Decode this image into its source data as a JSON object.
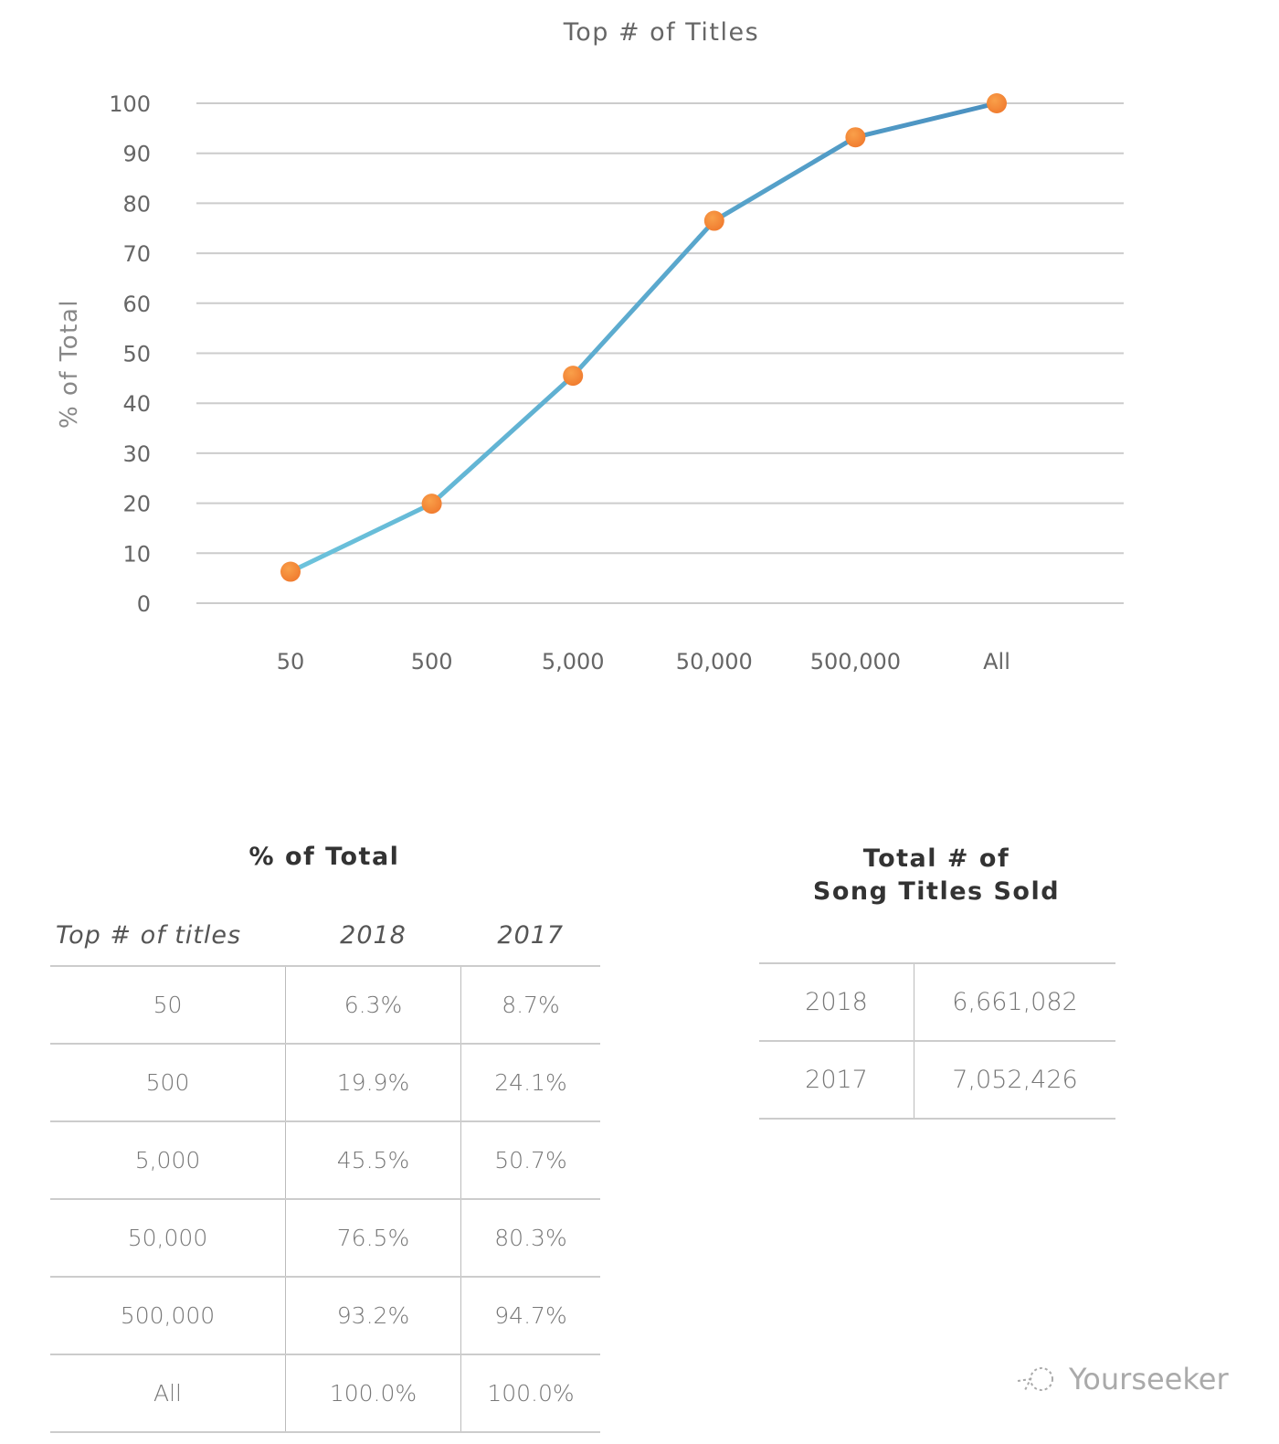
{
  "chart_data": {
    "type": "line",
    "title": "Top # of Titles",
    "xlabel": "",
    "ylabel": "% of Total",
    "categories": [
      "50",
      "500",
      "5,000",
      "50,000",
      "500,000",
      "All"
    ],
    "values": [
      6.3,
      19.9,
      45.5,
      76.5,
      93.2,
      100.0
    ],
    "ylim": [
      0,
      100
    ],
    "yticks": [
      0,
      10,
      20,
      30,
      40,
      50,
      60,
      70,
      80,
      90,
      100
    ],
    "grid": true,
    "colors": {
      "line_start": "#6cc3dc",
      "line_end": "#4a90c0",
      "marker": "#f07a2e",
      "grid": "#cccccc"
    }
  },
  "percent_table": {
    "title": "% of Total",
    "headers": [
      "Top # of titles",
      "2018",
      "2017"
    ],
    "rows": [
      [
        "50",
        "6.3%",
        "8.7%"
      ],
      [
        "500",
        "19.9%",
        "24.1%"
      ],
      [
        "5,000",
        "45.5%",
        "50.7%"
      ],
      [
        "50,000",
        "76.5%",
        "80.3%"
      ],
      [
        "500,000",
        "93.2%",
        "94.7%"
      ],
      [
        "All",
        "100.0%",
        "100.0%"
      ]
    ]
  },
  "totals_table": {
    "title_line1": "Total # of",
    "title_line2": "Song Titles Sold",
    "rows": [
      [
        "2018",
        "6,661,082"
      ],
      [
        "2017",
        "7,052,426"
      ]
    ]
  },
  "watermark": "Yourseeker"
}
